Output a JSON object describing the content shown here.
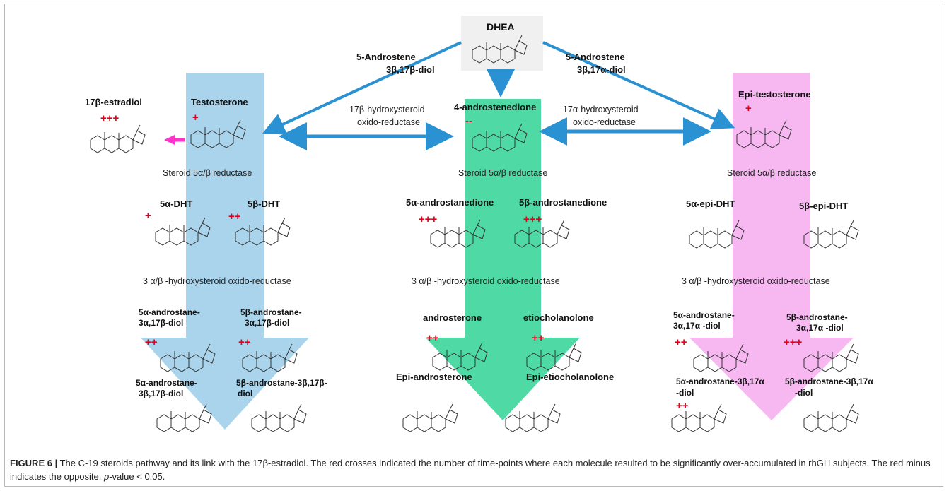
{
  "caption": {
    "figure_label": "FIGURE 6 |",
    "text_1": " The C-19 steroids pathway and its link with the 17β-estradiol. The red crosses indicated the number of time-points where each molecule resulted to be significantly over-accumulated in rhGH subjects. The red minus indicates the opposite. ",
    "p_symbol": "p",
    "text_2": "-value < 0.05."
  },
  "top": {
    "dhea": "DHEA",
    "left_intermediate_1": "5-Androstene",
    "left_intermediate_2": "3β,17β-diol",
    "right_intermediate_1": "5-Androstene",
    "right_intermediate_2": "3β,17α-diol"
  },
  "left_column": {
    "estradiol": "17β-estradiol",
    "estradiol_sign": "+++",
    "testosterone": "Testosterone",
    "testosterone_sign": "+",
    "reductase": "Steroid 5α/β reductase",
    "dht_5a": "5α-DHT",
    "dht_5a_sign": "+",
    "dht_5b": "5β-DHT",
    "dht_5b_sign": "++",
    "oxidoreductase": "3 α/β -hydroxysteroid oxido-reductase",
    "diol_5a_17b_1": "5α-androstane-",
    "diol_5a_17b_2": "3α,17β-diol",
    "diol_5a_17b_sign": "++",
    "diol_5b_17b_1": "5β-androstane-",
    "diol_5b_17b_2": "3α,17β-diol",
    "diol_5b_17b_sign": "++",
    "bdiol_5a_1": "5α-androstane-",
    "bdiol_5a_2": "3β,17β-diol",
    "bdiol_5b_1": "5β-androstane-3β,17β-",
    "bdiol_5b_2": "diol"
  },
  "middle": {
    "enzyme_left_1": "17β-hydroxysteroid",
    "enzyme_left_2": "oxido-reductase",
    "enzyme_right_1": "17α-hydroxysteroid",
    "enzyme_right_2": "oxido-reductase"
  },
  "center_column": {
    "androstenedione": "4-androstenedione",
    "androstenedione_sign": "--",
    "reductase": "Steroid 5α/β reductase",
    "dione_5a": "5α-androstanedione",
    "dione_5a_sign": "+++",
    "dione_5b": "5β-androstanedione",
    "dione_5b_sign": "+++",
    "oxidoreductase": "3 α/β -hydroxysteroid oxido-reductase",
    "androsterone": "androsterone",
    "androsterone_sign": "++",
    "etiocholanolone": "etiocholanolone",
    "etiocholanolone_sign": "++",
    "epi_androsterone": "Epi-androsterone",
    "epi_etiocholanolone": "Epi-etiocholanolone"
  },
  "right_column": {
    "epitestosterone": "Epi-testosterone",
    "epitestosterone_sign": "+",
    "reductase": "Steroid 5α/β reductase",
    "epidht_5a": "5α-epi-DHT",
    "epidht_5b": "5β-epi-DHT",
    "oxidoreductase": "3 α/β -hydroxysteroid oxido-reductase",
    "diol_5a_17a_1": "5α-androstane-",
    "diol_5a_17a_2": "3α,17α -diol",
    "diol_5a_17a_sign": "++",
    "diol_5b_17a_1": "5β-androstane-",
    "diol_5b_17a_2": "3α,17α -diol",
    "diol_5b_17a_sign": "+++",
    "bdiol_5a_1": "5α-androstane-3β,17α",
    "bdiol_5a_2": "-diol",
    "bdiol_5a_sign": "++",
    "bdiol_5b_1": "5β-androstane-3β,17α",
    "bdiol_5b_2": "-diol"
  },
  "colors": {
    "left_band": "#a9d4ec",
    "center_band": "#4fd9a5",
    "right_band": "#f7b8f2",
    "arrow_blue": "#2a92d2",
    "estradiol_arrow": "#ff33cc",
    "sign_red": "#e3001b"
  }
}
